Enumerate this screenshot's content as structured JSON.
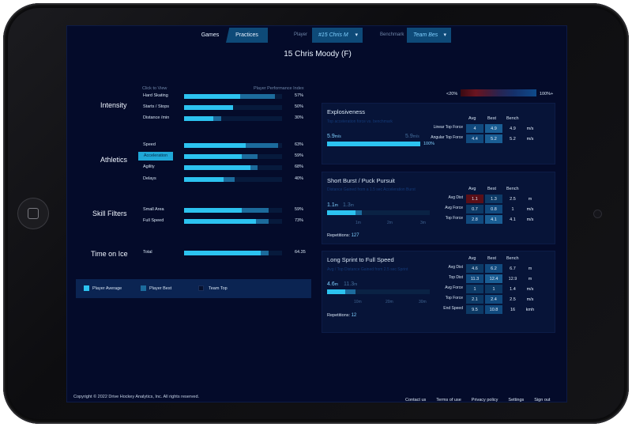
{
  "nav": {
    "games": "Games",
    "practices": "Practices",
    "player_label": "Player",
    "player_value": "#15 Chris M",
    "benchmark_label": "Benchmark",
    "benchmark_value": "Team Bes"
  },
  "title": "15 Chris Moody (F)",
  "left": {
    "col_click": "Click to View",
    "col_ppi": "Player Performance Index",
    "sections": [
      {
        "name": "Intensity",
        "rows": [
          {
            "label": "Hard Skating",
            "avg": 0.57,
            "best": 0.93,
            "value": "57%"
          },
          {
            "label": "Starts / Stops",
            "avg": 0.5,
            "best": 0.5,
            "value": "50%"
          },
          {
            "label": "Distance /min",
            "avg": 0.3,
            "best": 0.38,
            "value": "30%"
          }
        ]
      },
      {
        "name": "Athletics",
        "rows": [
          {
            "label": "Speed",
            "avg": 0.63,
            "best": 0.96,
            "value": "63%"
          },
          {
            "label": "Acceleration",
            "avg": 0.59,
            "best": 0.75,
            "value": "59%",
            "selected": true
          },
          {
            "label": "Agility",
            "avg": 0.68,
            "best": 0.75,
            "value": "68%"
          },
          {
            "label": "Delays",
            "avg": 0.4,
            "best": 0.52,
            "value": "40%"
          }
        ]
      },
      {
        "name": "Skill Filters",
        "rows": [
          {
            "label": "Small Area",
            "avg": 0.59,
            "best": 0.86,
            "value": "59%"
          },
          {
            "label": "Full Speed",
            "avg": 0.73,
            "best": 0.86,
            "value": "73%"
          }
        ]
      },
      {
        "name": "Time on Ice",
        "rows": [
          {
            "label": "Total",
            "avg": 0.78,
            "best": 0.86,
            "value": "64.35"
          }
        ]
      }
    ],
    "legend": [
      "Player Average",
      "Player Best",
      "Team Top"
    ]
  },
  "scale": {
    "low": "<20%",
    "high": "100%+"
  },
  "explosiveness": {
    "title": "Explosiveness",
    "subtitle": "Top acceleration force vs. benchmark",
    "value": "5.9",
    "unit": "m/s",
    "bench_value": "5.9",
    "bench_unit": "m/s",
    "pct": "100%",
    "fill": 1.0,
    "headers": [
      "Avg",
      "Best",
      "Bench"
    ],
    "rows": [
      {
        "label": "Linear Top Force",
        "avg": "4",
        "best": "4.9",
        "bench": "4.9",
        "unit": "m/s"
      },
      {
        "label": "Angular Top Force",
        "avg": "4.4",
        "best": "5.2",
        "bench": "5.2",
        "unit": "m/s"
      }
    ]
  },
  "burst": {
    "title": "Short Burst / Puck Pursuit",
    "subtitle": "Distance Gained from a 1.5 sec Acceleration Burst",
    "value": "1.1",
    "unit": "m",
    "bench_value": "1.3",
    "bench_unit": "m",
    "fill": 0.28,
    "fill_best": 0.34,
    "ticks": [
      "1m",
      "2m",
      "3m"
    ],
    "reps_label": "Repetitions:",
    "reps": "127",
    "headers": [
      "Avg",
      "Best",
      "Bench"
    ],
    "rows": [
      {
        "label": "Avg Dist",
        "avg": "1.1",
        "best": "1.3",
        "bench": "2.5",
        "unit": "m"
      },
      {
        "label": "Avg Force",
        "avg": "0.7",
        "best": "0.8",
        "bench": "1",
        "unit": "m/s"
      },
      {
        "label": "Top Force",
        "avg": "2.8",
        "best": "4.1",
        "bench": "4.1",
        "unit": "m/s"
      }
    ]
  },
  "sprint": {
    "title": "Long Sprint to Full Speed",
    "subtitle": "Avg / Top Distance Gained from 2.5 sec Sprint",
    "value": "4.6",
    "unit": "m",
    "bench_value": "11.3",
    "bench_unit": "m",
    "fill": 0.18,
    "fill_best": 0.28,
    "ticks": [
      "10m",
      "20m",
      "30m"
    ],
    "reps_label": "Repetitions:",
    "reps": "12",
    "headers": [
      "Avg",
      "Best",
      "Bench"
    ],
    "rows": [
      {
        "label": "Avg Dist",
        "avg": "4.6",
        "best": "6.2",
        "bench": "6.7",
        "unit": "m"
      },
      {
        "label": "Top Dist",
        "avg": "11.3",
        "best": "12.4",
        "bench": "12.9",
        "unit": "m"
      },
      {
        "label": "Avg Force",
        "avg": "1",
        "best": "1",
        "bench": "1.4",
        "unit": "m/s"
      },
      {
        "label": "Top Force",
        "avg": "2.1",
        "best": "2.4",
        "bench": "2.5",
        "unit": "m/s"
      },
      {
        "label": "End Speed",
        "avg": "9.5",
        "best": "10.8",
        "bench": "16",
        "unit": "kmh"
      }
    ]
  },
  "footer": {
    "copyright": "Copyright © 2022 Drive Hockey Analytics, Inc. All rights reserved.",
    "links": [
      "Contact us",
      "Terms of use",
      "Privacy policy",
      "Settings",
      "Sign out"
    ]
  },
  "colors": {
    "bg": "#040b2a",
    "avg": "#2cc3f0",
    "best": "#1c6b9c",
    "track": "#0c2f52",
    "accent": "#0e4a78"
  }
}
